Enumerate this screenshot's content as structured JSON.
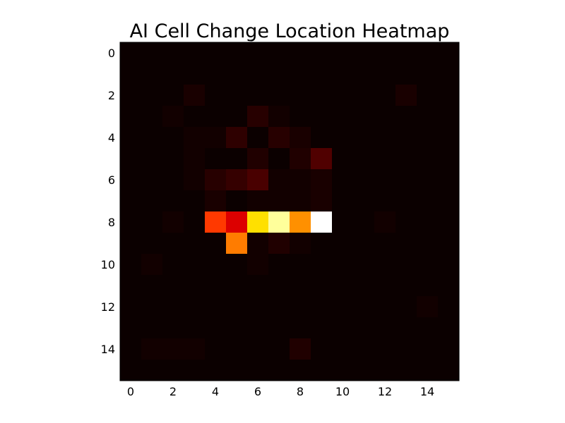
{
  "chart_data": {
    "type": "heatmap",
    "title": "AI Cell Change Location Heatmap",
    "xlabel": "",
    "ylabel": "",
    "colormap": "hot",
    "rows": 16,
    "cols": 16,
    "xlim": [
      -0.5,
      15.5
    ],
    "ylim": [
      15.5,
      -0.5
    ],
    "xticks": [
      0,
      2,
      4,
      6,
      8,
      10,
      12,
      14
    ],
    "yticks": [
      0,
      2,
      4,
      6,
      8,
      10,
      12,
      14
    ],
    "values_range": [
      0,
      100
    ],
    "values": [
      [
        0,
        0,
        0,
        0,
        0,
        0,
        0,
        0,
        0,
        0,
        0,
        0,
        0,
        0,
        0,
        0
      ],
      [
        0,
        0,
        0,
        0,
        0,
        0,
        0,
        0,
        0,
        0,
        0,
        0,
        0,
        0,
        0,
        0
      ],
      [
        0,
        0,
        0,
        2,
        0,
        0,
        0,
        0,
        0,
        0,
        0,
        0,
        0,
        2,
        0,
        0
      ],
      [
        0,
        0,
        1,
        0,
        0,
        0,
        4,
        1,
        0,
        0,
        0,
        0,
        0,
        0,
        0,
        0
      ],
      [
        0,
        0,
        0,
        1,
        1,
        5,
        0,
        4,
        2,
        0,
        0,
        0,
        0,
        0,
        0,
        0
      ],
      [
        0,
        0,
        0,
        1,
        0,
        0,
        3,
        0,
        3,
        10,
        0,
        0,
        0,
        0,
        0,
        0
      ],
      [
        0,
        0,
        0,
        1,
        4,
        6,
        9,
        1,
        1,
        2,
        0,
        0,
        0,
        0,
        0,
        0
      ],
      [
        0,
        0,
        0,
        0,
        2,
        0,
        1,
        1,
        1,
        2,
        0,
        0,
        0,
        0,
        0,
        0
      ],
      [
        0,
        0,
        1,
        0,
        45,
        30,
        70,
        90,
        58,
        100,
        0,
        0,
        1,
        0,
        0,
        0
      ],
      [
        0,
        0,
        0,
        0,
        0,
        55,
        1,
        3,
        1,
        0,
        0,
        0,
        0,
        0,
        0,
        0
      ],
      [
        0,
        1,
        0,
        0,
        0,
        0,
        1,
        0,
        0,
        0,
        0,
        0,
        0,
        0,
        0,
        0
      ],
      [
        0,
        0,
        0,
        0,
        0,
        0,
        0,
        0,
        0,
        0,
        0,
        0,
        0,
        0,
        0,
        0
      ],
      [
        0,
        0,
        0,
        0,
        0,
        0,
        0,
        0,
        0,
        0,
        0,
        0,
        0,
        0,
        1,
        0
      ],
      [
        0,
        0,
        0,
        0,
        0,
        0,
        0,
        0,
        0,
        0,
        0,
        0,
        0,
        0,
        0,
        0
      ],
      [
        0,
        1,
        1,
        1,
        0,
        0,
        0,
        0,
        3,
        0,
        0,
        0,
        0,
        0,
        0,
        0
      ],
      [
        0,
        0,
        0,
        0,
        0,
        0,
        0,
        0,
        0,
        0,
        0,
        0,
        0,
        0,
        0,
        0
      ]
    ]
  }
}
